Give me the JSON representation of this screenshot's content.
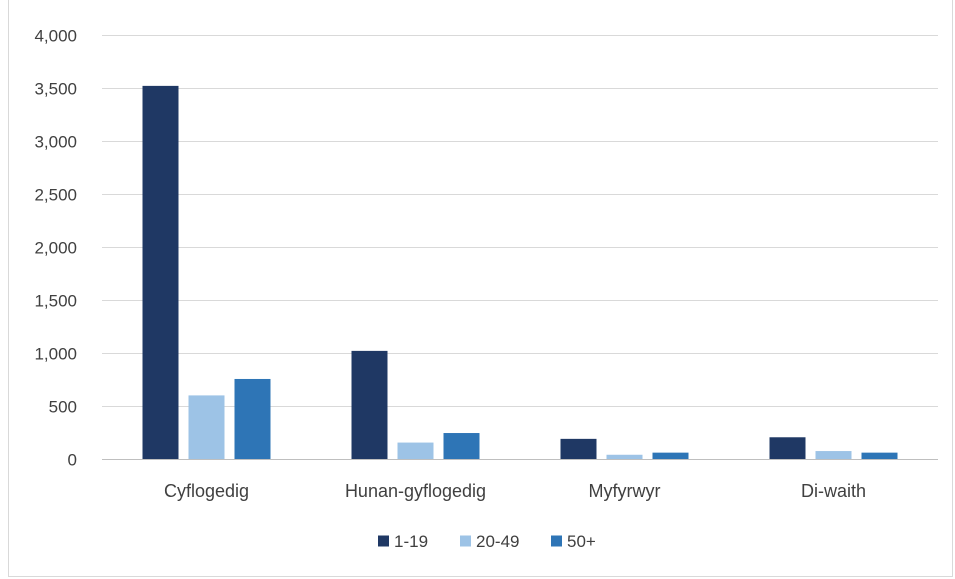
{
  "chart_data": {
    "type": "bar",
    "categories": [
      "Cyflogedig",
      "Hunan-gyflogedig",
      "Myfyrwyr",
      "Di-waith"
    ],
    "series": [
      {
        "name": "1-19",
        "color": "#1f3864",
        "values": [
          3520,
          1020,
          190,
          205
        ]
      },
      {
        "name": "20-49",
        "color": "#9dc3e6",
        "values": [
          600,
          155,
          40,
          75
        ]
      },
      {
        "name": "50+",
        "color": "#2e75b6",
        "values": [
          755,
          245,
          60,
          60
        ]
      }
    ],
    "ylim": [
      0,
      4000
    ],
    "yticks": [
      0,
      500,
      1000,
      1500,
      2000,
      2500,
      3000,
      3500,
      4000
    ],
    "ytick_labels": [
      "0",
      "500",
      "1,000",
      "1,500",
      "2,000",
      "2,500",
      "3,000",
      "3,500",
      "4,000"
    ],
    "grid": true,
    "legend_position": "bottom",
    "title": "",
    "xlabel": "",
    "ylabel": ""
  }
}
